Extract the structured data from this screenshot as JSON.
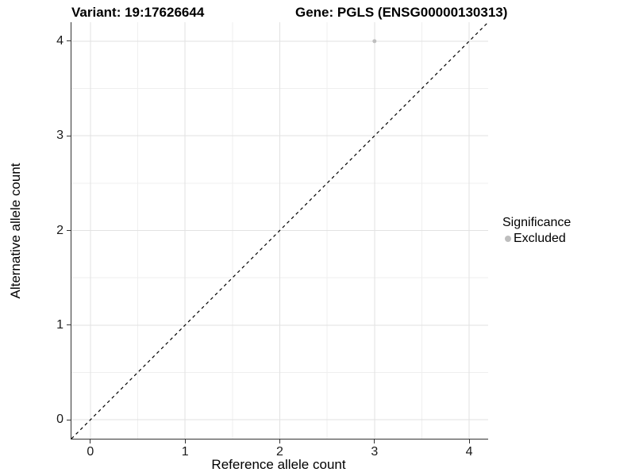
{
  "chart_data": {
    "type": "scatter",
    "title_left": "Variant: 19:17626644",
    "title_right": "Gene: PGLS (ENSG00000130313)",
    "xlabel": "Reference allele count",
    "ylabel": "Alternative allele count",
    "xlim": [
      -0.2,
      4.2
    ],
    "ylim": [
      -0.2,
      4.2
    ],
    "x_ticks": [
      0,
      1,
      2,
      3,
      4
    ],
    "y_ticks": [
      0,
      1,
      2,
      3,
      4
    ],
    "x_minor": [
      0.5,
      1.5,
      2.5,
      3.5
    ],
    "y_minor": [
      0.5,
      1.5,
      2.5,
      3.5
    ],
    "grid": true,
    "points": [
      {
        "x": 3,
        "y": 4,
        "series": "Excluded"
      }
    ],
    "reference_line": {
      "style": "dashed",
      "from": [
        -0.2,
        -0.2
      ],
      "to": [
        4.2,
        4.2
      ],
      "meaning": "identity y=x"
    },
    "legend": {
      "title": "Significance",
      "position": "right",
      "items": [
        {
          "label": "Excluded",
          "color": "#bebebe",
          "marker": "circle"
        }
      ]
    }
  },
  "colors": {
    "background": "#ffffff",
    "grid_major": "#e2e2e2",
    "grid_minor": "#efefef",
    "axis_line": "#333333",
    "dashed_line": "#000000",
    "point": "#bebebe",
    "text": "#000000"
  }
}
